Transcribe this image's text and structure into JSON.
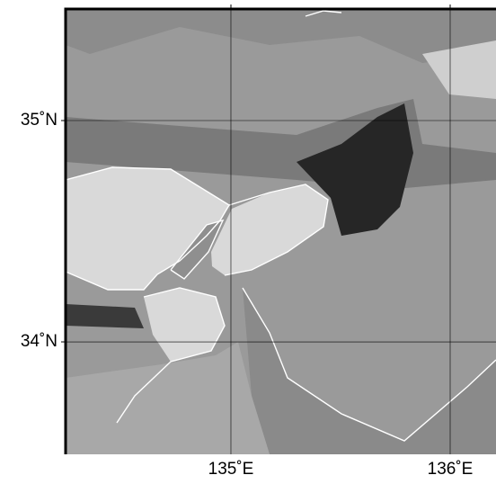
{
  "map": {
    "xlim": [
      134.246,
      136.209
    ],
    "ylim": [
      33.492,
      35.504
    ],
    "xticks": [
      {
        "value": 135,
        "label": "135˚E"
      },
      {
        "value": 136,
        "label": "136˚E"
      }
    ],
    "yticks": [
      {
        "value": 35,
        "label": "35˚N"
      },
      {
        "value": 34,
        "label": "34˚N"
      }
    ]
  }
}
